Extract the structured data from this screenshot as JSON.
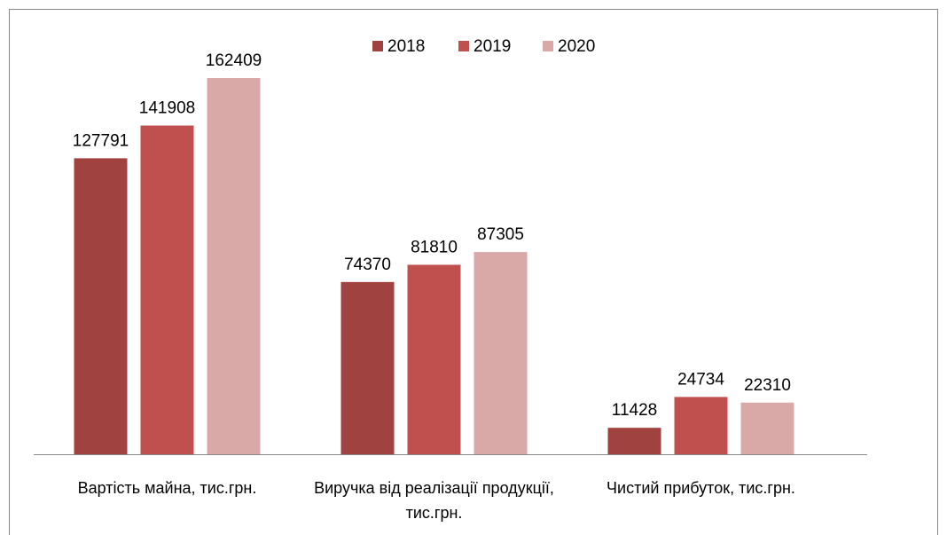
{
  "chart_data": {
    "type": "bar",
    "categories": [
      "Вартість майна, тис.грн.",
      "Виручка від реалізації продукції, тис.грн.",
      "Чистий прибуток, тис.грн."
    ],
    "series": [
      {
        "name": "2018",
        "color": "#a04340",
        "values": [
          127791,
          74370,
          11428
        ]
      },
      {
        "name": "2019",
        "color": "#c0504d",
        "values": [
          141908,
          81810,
          24734
        ]
      },
      {
        "name": "2020",
        "color": "#d9a9a8",
        "values": [
          162409,
          87305,
          22310
        ]
      }
    ],
    "legend": "top"
  }
}
